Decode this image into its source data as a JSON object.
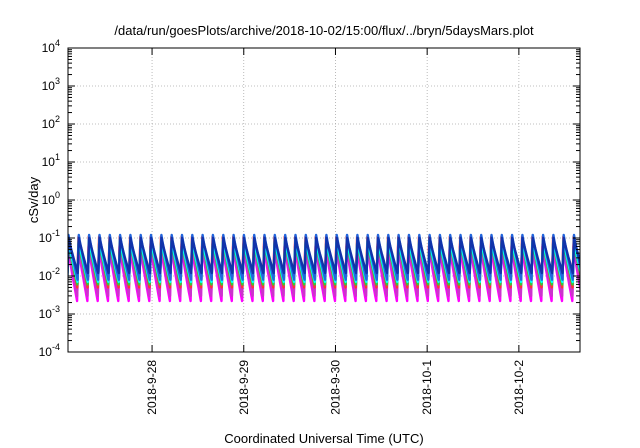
{
  "chart_data": {
    "type": "line",
    "title": "/data/run/goesPlots/archive/2018-10-02/15:00/flux/../bryn/5daysMars.plot",
    "xlabel": "Coordinated Universal Time (UTC)",
    "ylabel": "cSv/day",
    "yscale": "log",
    "ylim": [
      0.0001,
      10000
    ],
    "xlim": [
      "2018-09-27T02:00",
      "2018-10-02T16:00"
    ],
    "grid": true,
    "x_ticks": [
      "2018-9-28",
      "2018-9-29",
      "2018-9-30",
      "2018-10-1",
      "2018-10-2"
    ],
    "y_ticks": [
      {
        "base": "10",
        "exp": "-4",
        "value": 0.0001
      },
      {
        "base": "10",
        "exp": "-3",
        "value": 0.001
      },
      {
        "base": "10",
        "exp": "-2",
        "value": 0.01
      },
      {
        "base": "10",
        "exp": "-1",
        "value": 0.1
      },
      {
        "base": "10",
        "exp": "0",
        "value": 1
      },
      {
        "base": "10",
        "exp": "1",
        "value": 10
      },
      {
        "base": "10",
        "exp": "2",
        "value": 100
      },
      {
        "base": "10",
        "exp": "3",
        "value": 1000
      },
      {
        "base": "10",
        "exp": "4",
        "value": 10000
      }
    ],
    "pattern": {
      "period_hours": 2.7,
      "phase_hours": 0.0,
      "comment_free_note": ""
    },
    "series": [
      {
        "color": "#ff00ff",
        "peak": 0.06,
        "trough": 0.0022
      },
      {
        "color": "#cc33cc",
        "peak": 0.07,
        "trough": 0.003
      },
      {
        "color": "#ff3333",
        "peak": 0.11,
        "trough": 0.005
      },
      {
        "color": "#33cc33",
        "peak": 0.08,
        "trough": 0.006
      },
      {
        "color": "#00ffff",
        "peak": 0.09,
        "trough": 0.007
      },
      {
        "color": "#2266dd",
        "peak": 0.12,
        "trough": 0.008
      },
      {
        "color": "#1133aa",
        "peak": 0.1,
        "trough": 0.012
      }
    ]
  }
}
